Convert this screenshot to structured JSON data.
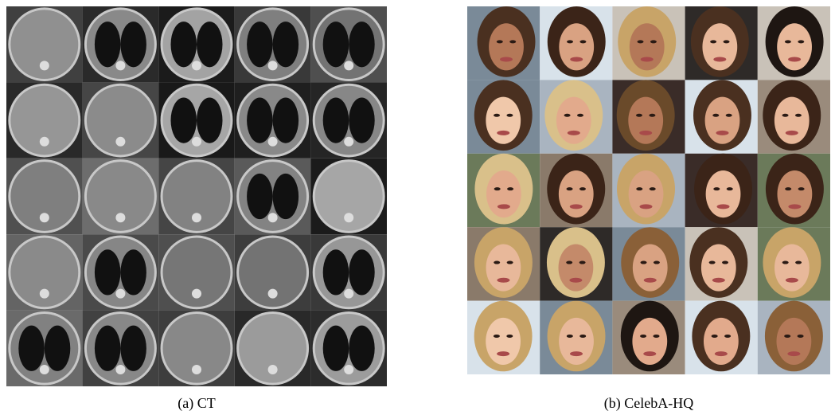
{
  "figure": {
    "panels": [
      {
        "caption": "(a) CT"
      },
      {
        "caption": "(b) CelebA-HQ"
      }
    ]
  }
}
